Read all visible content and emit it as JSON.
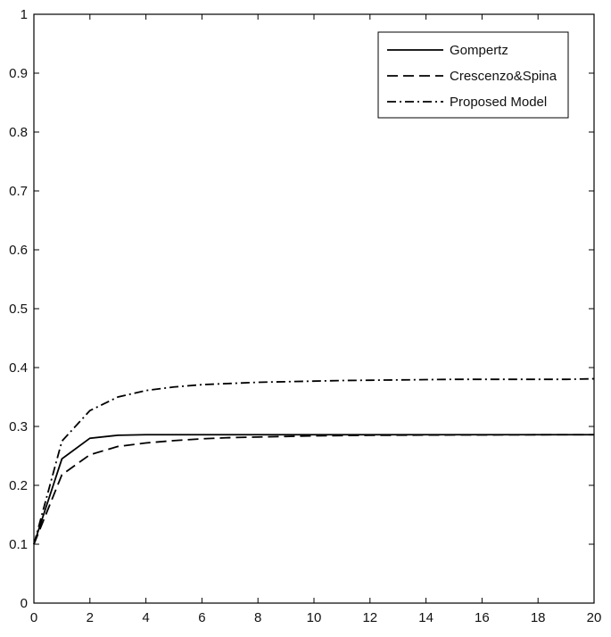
{
  "chart_data": {
    "type": "line",
    "title": "",
    "xlabel": "",
    "ylabel": "",
    "xlim": [
      0,
      20
    ],
    "ylim": [
      0,
      1
    ],
    "xticks": [
      0,
      2,
      4,
      6,
      8,
      10,
      12,
      14,
      16,
      18,
      20
    ],
    "yticks": [
      0,
      0.1,
      0.2,
      0.3,
      0.4,
      0.5,
      0.6,
      0.7,
      0.8,
      0.9,
      1
    ],
    "xtick_labels": [
      "0",
      "2",
      "4",
      "6",
      "8",
      "10",
      "12",
      "14",
      "16",
      "18",
      "20"
    ],
    "ytick_labels": [
      "0",
      "0.1",
      "0.2",
      "0.3",
      "0.4",
      "0.5",
      "0.6",
      "0.7",
      "0.8",
      "0.9",
      "1"
    ],
    "grid": false,
    "legend_position": "top-right",
    "x": [
      0,
      1,
      2,
      3,
      4,
      5,
      6,
      7,
      8,
      9,
      10,
      11,
      12,
      13,
      14,
      15,
      16,
      17,
      18,
      19,
      20
    ],
    "series": [
      {
        "name": "Gompertz",
        "style": "solid",
        "values": [
          0.1,
          0.245,
          0.28,
          0.285,
          0.286,
          0.286,
          0.286,
          0.286,
          0.286,
          0.286,
          0.286,
          0.286,
          0.286,
          0.286,
          0.286,
          0.286,
          0.286,
          0.286,
          0.286,
          0.286,
          0.286
        ]
      },
      {
        "name": "Crescenzo&Spina",
        "style": "dashed",
        "values": [
          0.1,
          0.218,
          0.252,
          0.266,
          0.272,
          0.276,
          0.279,
          0.281,
          0.282,
          0.283,
          0.284,
          0.2845,
          0.285,
          0.2852,
          0.2854,
          0.2856,
          0.2857,
          0.2858,
          0.2859,
          0.286,
          0.286
        ]
      },
      {
        "name": "Proposed Model",
        "style": "dashdot",
        "values": [
          0.1,
          0.275,
          0.327,
          0.35,
          0.361,
          0.367,
          0.371,
          0.373,
          0.375,
          0.376,
          0.377,
          0.378,
          0.3785,
          0.379,
          0.3795,
          0.38,
          0.38,
          0.38,
          0.38,
          0.38,
          0.381
        ]
      }
    ],
    "colors": {
      "line": "#000000",
      "axis": "#000000",
      "background": "#ffffff"
    }
  }
}
